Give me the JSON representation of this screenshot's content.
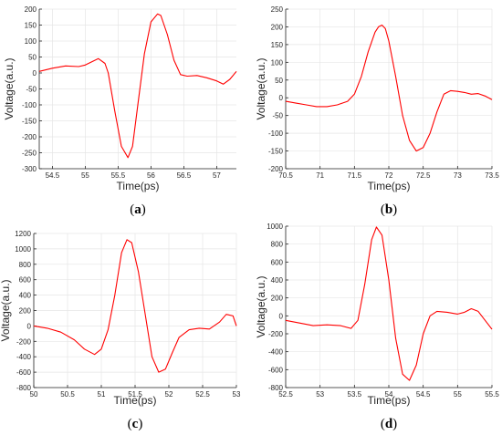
{
  "colors": {
    "line": "#ff0000",
    "grid": "#e6e6e6",
    "axis": "#262626"
  },
  "chart_data": [
    {
      "type": "line",
      "panel_label": "a",
      "xlabel": "Time(ps)",
      "ylabel": "Voltage(a.u.)",
      "xlim": [
        54.3,
        57.3
      ],
      "ylim": [
        -300,
        200
      ],
      "xticks": [
        54.5,
        55,
        55.5,
        56,
        56.5,
        57
      ],
      "xtick_labels": [
        "54.5",
        "55",
        "55.5",
        "56",
        "56.5",
        "57"
      ],
      "yticks": [
        -300,
        -250,
        -200,
        -150,
        -100,
        -50,
        0,
        50,
        100,
        150,
        200
      ],
      "ytick_labels": [
        "-300",
        "-250",
        "-200",
        "-150",
        "-100",
        "-50",
        "0",
        "50",
        "100",
        "150",
        "200"
      ],
      "grid": true,
      "series": [
        {
          "x": [
            54.3,
            54.5,
            54.7,
            54.9,
            55.0,
            55.1,
            55.2,
            55.3,
            55.35,
            55.45,
            55.55,
            55.65,
            55.72,
            55.8,
            55.9,
            56.0,
            56.1,
            56.15,
            56.25,
            56.35,
            56.45,
            56.55,
            56.7,
            56.85,
            57.0,
            57.1,
            57.2,
            57.3
          ],
          "y": [
            5,
            15,
            22,
            20,
            25,
            35,
            45,
            30,
            0,
            -120,
            -230,
            -265,
            -230,
            -100,
            60,
            160,
            185,
            180,
            120,
            40,
            -5,
            -10,
            -8,
            -15,
            -25,
            -35,
            -20,
            5
          ]
        }
      ]
    },
    {
      "type": "line",
      "panel_label": "b",
      "xlabel": "Time(ps)",
      "ylabel": "Voltage(a.u.)",
      "xlim": [
        70.5,
        73.5
      ],
      "ylim": [
        -200,
        250
      ],
      "xticks": [
        70.5,
        71,
        71.5,
        72,
        72.5,
        73,
        73.5
      ],
      "xtick_labels": [
        "70.5",
        "71",
        "71.5",
        "72",
        "72.5",
        "73",
        "73.5"
      ],
      "yticks": [
        -200,
        -150,
        -100,
        -50,
        0,
        50,
        100,
        150,
        200,
        250
      ],
      "ytick_labels": [
        "-200",
        "-150",
        "-100",
        "-50",
        "0",
        "50",
        "100",
        "150",
        "200",
        "250"
      ],
      "grid": true,
      "series": [
        {
          "x": [
            70.5,
            70.65,
            70.8,
            70.95,
            71.1,
            71.25,
            71.4,
            71.5,
            71.6,
            71.7,
            71.8,
            71.85,
            71.9,
            71.95,
            72.0,
            72.1,
            72.2,
            72.3,
            72.4,
            72.5,
            72.6,
            72.7,
            72.8,
            72.9,
            73.0,
            73.1,
            73.2,
            73.3,
            73.4,
            73.5
          ],
          "y": [
            -10,
            -15,
            -20,
            -25,
            -25,
            -20,
            -10,
            10,
            60,
            130,
            185,
            200,
            205,
            195,
            160,
            60,
            -50,
            -120,
            -150,
            -140,
            -100,
            -40,
            10,
            20,
            18,
            15,
            10,
            12,
            5,
            -5
          ]
        }
      ]
    },
    {
      "type": "line",
      "panel_label": "c",
      "xlabel": "Time(ps)",
      "ylabel": "Voltage(a.u.)",
      "xlim": [
        50,
        53
      ],
      "ylim": [
        -800,
        1200
      ],
      "xticks": [
        50,
        50.5,
        51,
        51.5,
        52,
        52.5,
        53
      ],
      "xtick_labels": [
        "50",
        "50.5",
        "51",
        "51.5",
        "52",
        "52.5",
        "53"
      ],
      "yticks": [
        -800,
        -600,
        -400,
        -200,
        0,
        200,
        400,
        600,
        800,
        1000,
        1200
      ],
      "ytick_labels": [
        "-800",
        "-600",
        "-400",
        "-200",
        "0",
        "200",
        "400",
        "600",
        "800",
        "1000",
        "1200"
      ],
      "grid": true,
      "series": [
        {
          "x": [
            50,
            50.2,
            50.4,
            50.6,
            50.75,
            50.9,
            51.0,
            51.1,
            51.2,
            51.3,
            51.38,
            51.45,
            51.55,
            51.65,
            51.75,
            51.85,
            51.95,
            52.05,
            52.15,
            52.3,
            52.45,
            52.6,
            52.75,
            52.85,
            52.95,
            53.0
          ],
          "y": [
            0,
            -30,
            -80,
            -180,
            -300,
            -370,
            -300,
            -50,
            400,
            950,
            1120,
            1080,
            700,
            150,
            -400,
            -600,
            -560,
            -350,
            -150,
            -50,
            -30,
            -40,
            50,
            150,
            130,
            0
          ]
        }
      ]
    },
    {
      "type": "line",
      "panel_label": "d",
      "xlabel": "Time(ps)",
      "ylabel": "Voltage(a.u.)",
      "xlim": [
        52.5,
        55.5
      ],
      "ylim": [
        -800,
        1000
      ],
      "xticks": [
        52.5,
        53,
        53.5,
        54,
        54.5,
        55,
        55.5
      ],
      "xtick_labels": [
        "52.5",
        "53",
        "53.5",
        "54",
        "54.5",
        "55",
        "55.5"
      ],
      "yticks": [
        -800,
        -600,
        -400,
        -200,
        0,
        200,
        400,
        600,
        800,
        1000
      ],
      "ytick_labels": [
        "-800",
        "-600",
        "-400",
        "-200",
        "0",
        "200",
        "400",
        "600",
        "800",
        "1000"
      ],
      "grid": true,
      "series": [
        {
          "x": [
            52.5,
            52.7,
            52.9,
            53.1,
            53.3,
            53.45,
            53.55,
            53.65,
            53.75,
            53.82,
            53.9,
            54.0,
            54.1,
            54.2,
            54.3,
            54.4,
            54.5,
            54.6,
            54.7,
            54.85,
            55.0,
            55.1,
            55.2,
            55.3,
            55.4,
            55.5
          ],
          "y": [
            -50,
            -80,
            -110,
            -100,
            -110,
            -140,
            -50,
            350,
            850,
            990,
            900,
            400,
            -250,
            -650,
            -720,
            -550,
            -200,
            0,
            50,
            40,
            20,
            40,
            80,
            50,
            -50,
            -150
          ]
        }
      ]
    }
  ]
}
